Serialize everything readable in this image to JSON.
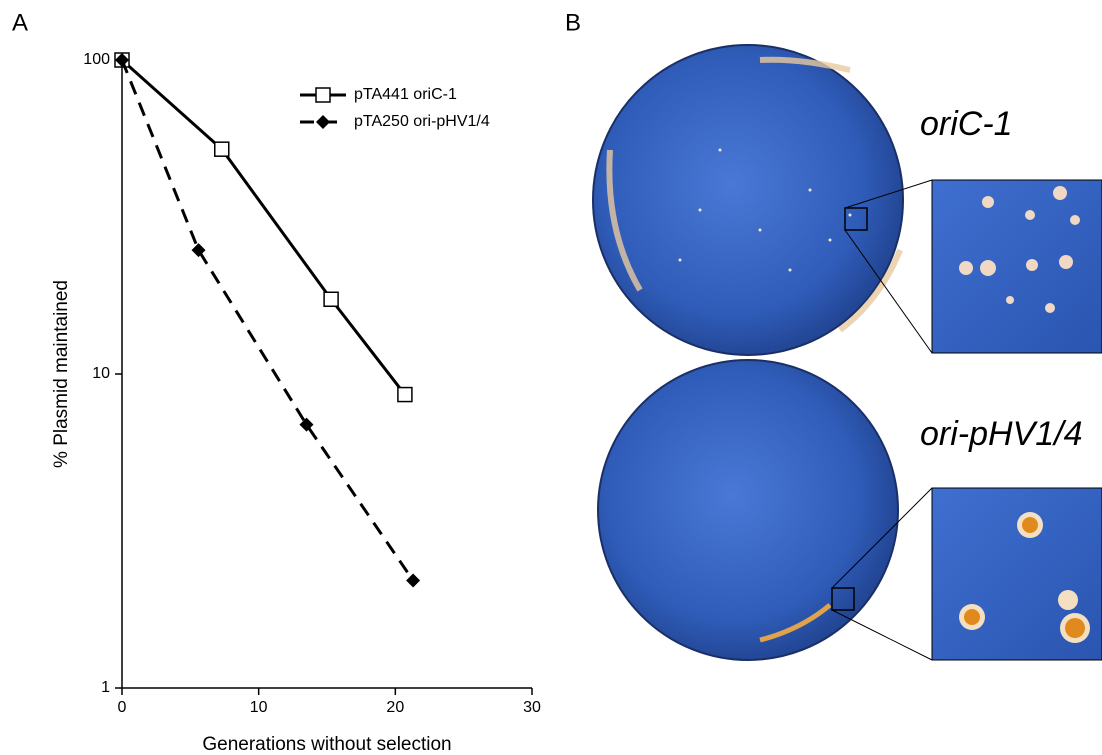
{
  "chart_data": {
    "type": "line",
    "y_label": "% Plasmid maintained",
    "x_label": "Generations without selection",
    "log_y": true,
    "xlim": [
      0,
      30
    ],
    "xticks": [
      0,
      10,
      20,
      30
    ],
    "ylim": [
      1,
      100
    ],
    "yticks": [
      1,
      10,
      100
    ],
    "legend": "upper right",
    "series": [
      {
        "name": "pTA441 oriC-1",
        "color": "#000000",
        "marker": "square-open",
        "dashed": false,
        "x": [
          0,
          7.3,
          15.3,
          20.7
        ],
        "values": [
          100,
          52,
          17.3,
          8.6
        ]
      },
      {
        "name": "pTA250 ori-pHV1/4",
        "color": "#000000",
        "marker": "diamond",
        "dashed": true,
        "x": [
          0,
          5.6,
          13.5,
          21.3
        ],
        "values": [
          100,
          24.8,
          6.9,
          2.2
        ]
      }
    ]
  },
  "figure": {
    "panel_labels": [
      "A",
      "B"
    ],
    "photo_labels": [
      "oriC-1",
      "ori-pHV1/4"
    ]
  }
}
